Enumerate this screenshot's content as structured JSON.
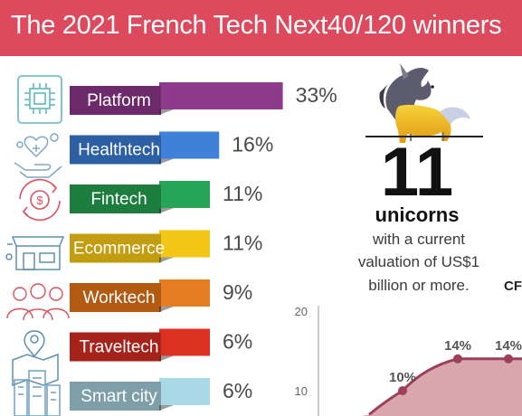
{
  "title": "The 2021 French Tech Next40/120 winners",
  "chart_data": [
    {
      "type": "bar",
      "categories": [
        "Platform",
        "Healthtech",
        "Fintech",
        "Ecommerce",
        "Worktech",
        "Traveltech",
        "Smart city"
      ],
      "values": [
        33,
        16,
        11,
        11,
        9,
        6,
        6
      ],
      "value_labels": [
        "33%",
        "16%",
        "11%",
        "11%",
        "9%",
        "6%",
        "6%"
      ],
      "colors": [
        "#8f3b8d",
        "#3f80d8",
        "#27a556",
        "#f3c715",
        "#e57d22",
        "#dc3224",
        "#a9d8e6"
      ],
      "label_box_colors": [
        "#6d2a6a",
        "#2c5fa3",
        "#1c7d3f",
        "#c29d10",
        "#b25a12",
        "#a5231a",
        "#7f9fa8"
      ],
      "icons": [
        "chip-icon",
        "health-hand-icon",
        "fintech-cycle-icon",
        "ecommerce-store-icon",
        "worktech-people-icon",
        "travel-map-pin-icon",
        "smart-city-buildings-icon"
      ]
    },
    {
      "type": "area",
      "y_ticks": [
        "20",
        "10"
      ],
      "ylim": [
        0,
        20
      ],
      "points": [
        {
          "label": "10%",
          "value": 10
        },
        {
          "label": "14%",
          "value": 14
        },
        {
          "label": "14%",
          "value": 14
        }
      ],
      "line_color": "#9e3f59",
      "fill_color": "#d9a6ac"
    }
  ],
  "unicorns": {
    "count": "11",
    "label": "unicorns",
    "caption_lines": [
      "with a current",
      "valuation of US$1",
      "billion or more."
    ]
  },
  "cut_label": "CF"
}
